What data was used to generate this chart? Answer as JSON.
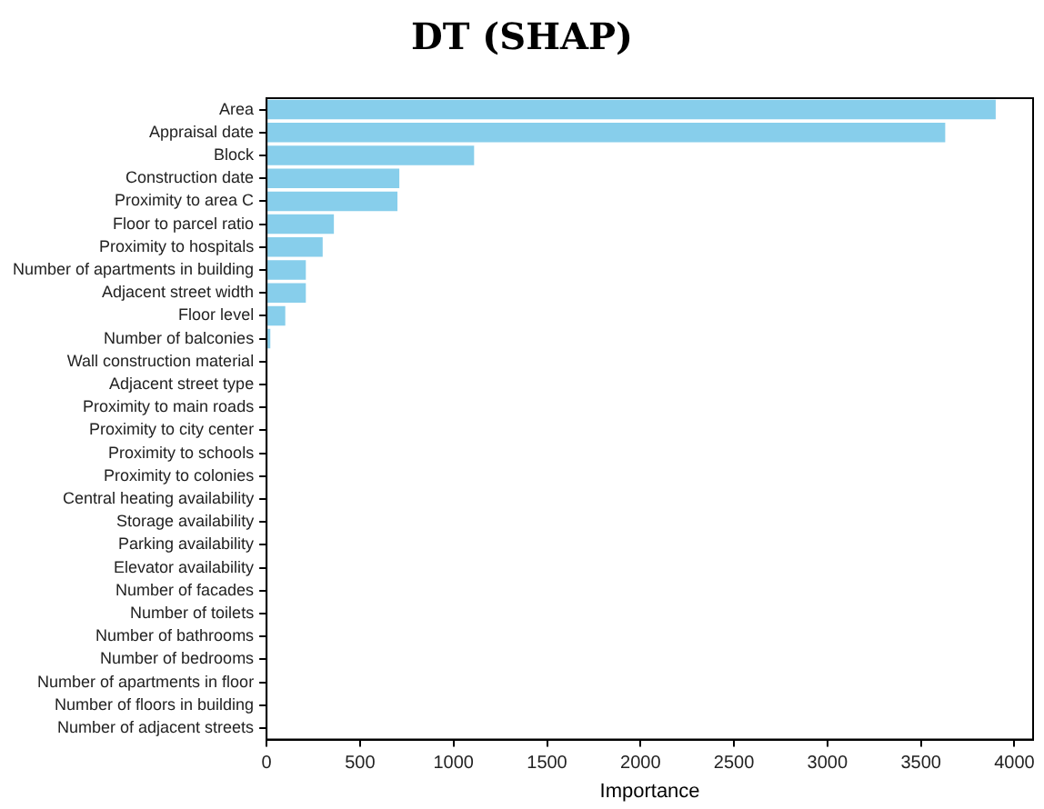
{
  "chart_data": {
    "type": "bar",
    "orientation": "horizontal",
    "title": "DT (SHAP)",
    "xlabel": "Importance",
    "categories": [
      "Area",
      "Appraisal date",
      "Block",
      "Construction date",
      "Proximity to area C",
      "Floor to parcel ratio",
      "Proximity to hospitals",
      "Number of apartments in building",
      "Adjacent street width",
      "Floor level",
      "Number of balconies",
      "Wall construction material",
      "Adjacent street type",
      "Proximity to main roads",
      "Proximity to city center",
      "Proximity to schools",
      "Proximity to colonies",
      "Central heating availability",
      "Storage availability",
      "Parking availability",
      "Elevator availability",
      "Number of facades",
      "Number of toilets",
      "Number of bathrooms",
      "Number of bedrooms",
      "Number of apartments in floor",
      "Number of floors in building",
      "Number of adjacent streets"
    ],
    "values": [
      3900,
      3630,
      1110,
      710,
      700,
      360,
      300,
      210,
      210,
      100,
      20,
      0,
      0,
      0,
      0,
      0,
      0,
      0,
      0,
      0,
      0,
      0,
      0,
      0,
      0,
      0,
      0,
      0
    ],
    "color": "#87ceeb",
    "xlim": [
      0,
      4100
    ],
    "xticks": [
      0,
      500,
      1000,
      1500,
      2000,
      2500,
      3000,
      3500,
      4000
    ],
    "grid": false,
    "legend": false
  }
}
